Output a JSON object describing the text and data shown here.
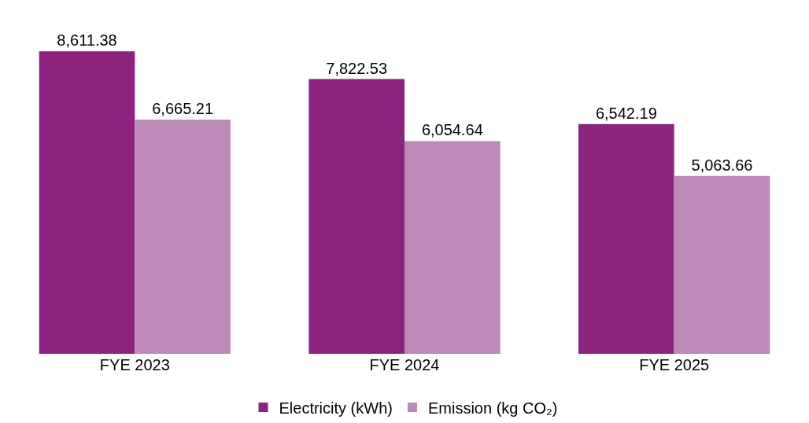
{
  "chart_data": {
    "type": "bar",
    "categories": [
      "FYE 2023",
      "FYE 2024",
      "FYE 2025"
    ],
    "series": [
      {
        "name": "Electricity (kWh)",
        "color": "#8b237f",
        "values": [
          8611.38,
          7822.53,
          6542.19
        ],
        "value_labels": [
          "8,611.38",
          "7,822.53",
          "6,542.19"
        ]
      },
      {
        "name": "Emission (kg CO₂)",
        "color": "#bd89b6",
        "values": [
          6665.21,
          6054.64,
          5063.66
        ],
        "value_labels": [
          "6,665.21",
          "6,054.64",
          "5,063.66"
        ]
      }
    ],
    "legend": "bottom",
    "tick_labels": "x"
  }
}
